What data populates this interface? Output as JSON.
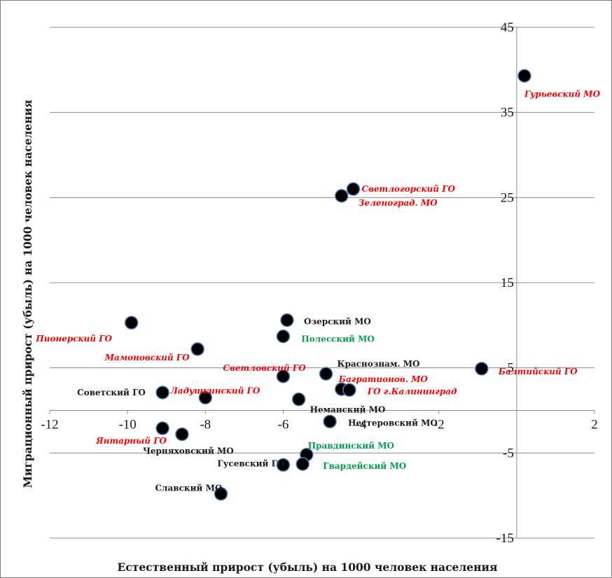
{
  "chart_data": {
    "type": "scatter",
    "title": "",
    "xlabel": "Естественный прирост (убыль) на 1000 человек населения",
    "ylabel": "Миграционный прирост (убыль) на 1000 человек населения",
    "xlim": [
      -12,
      2
    ],
    "ylim": [
      -15,
      45
    ],
    "x_ticks": [
      "-12",
      "-10",
      "-8",
      "-6",
      "-4",
      "-2",
      "2"
    ],
    "y_ticks": [
      "45",
      "35",
      "25",
      "15",
      "5",
      "-5",
      "-15"
    ],
    "grid": "horizontal",
    "marker_color": "#000000",
    "marker_edge_color": "#4a7ebb",
    "label_colors": {
      "red": "#ff0000",
      "green": "#00a050",
      "black": "#1a1a1a"
    },
    "points": [
      {
        "label": "Гурьевский МО",
        "x": 0.2,
        "y": 39.3,
        "color": "red"
      },
      {
        "label": "Светлогорский ГО",
        "x": -4.2,
        "y": 26.0,
        "color": "red"
      },
      {
        "label": "Зеленоград. МО",
        "x": -4.5,
        "y": 25.2,
        "color": "red"
      },
      {
        "label": "Озерский МО",
        "x": -5.9,
        "y": 10.6,
        "color": "black"
      },
      {
        "label": "Пионерский ГО",
        "x": -9.9,
        "y": 10.3,
        "color": "red"
      },
      {
        "label": "Полесский МО",
        "x": -6.0,
        "y": 8.7,
        "color": "green"
      },
      {
        "label": "Мамоновский ГО",
        "x": -8.2,
        "y": 7.2,
        "color": "red"
      },
      {
        "label": "Балтийский ГО",
        "x": -0.9,
        "y": 4.9,
        "color": "red"
      },
      {
        "label": "Краснознам. МО",
        "x": -4.9,
        "y": 4.3,
        "color": "black"
      },
      {
        "label": "Светловский ГО",
        "x": -6.0,
        "y": 4.0,
        "color": "red"
      },
      {
        "label": "Багратионов. МО",
        "x": -4.5,
        "y": 2.5,
        "color": "red"
      },
      {
        "label": "ГО г.Калининград",
        "x": -4.3,
        "y": 2.4,
        "color": "red"
      },
      {
        "label": "Советский ГО",
        "x": -9.1,
        "y": 2.1,
        "color": "black"
      },
      {
        "label": "Ладушкинский ГО",
        "x": -8.0,
        "y": 1.5,
        "color": "red"
      },
      {
        "label": "Неманский МО",
        "x": -5.6,
        "y": 1.3,
        "color": "black"
      },
      {
        "label": "Нестеровский МО",
        "x": -4.8,
        "y": -1.3,
        "color": "black"
      },
      {
        "label": "Янтарный ГО",
        "x": -9.1,
        "y": -2.1,
        "color": "red"
      },
      {
        "label": "Черняховский МО",
        "x": -8.6,
        "y": -2.8,
        "color": "black"
      },
      {
        "label": "Правдинский МО",
        "x": -5.4,
        "y": -5.2,
        "color": "green"
      },
      {
        "label": "Гусевский ГО",
        "x": -6.0,
        "y": -6.4,
        "color": "black"
      },
      {
        "label": "Гвардейский МО",
        "x": -5.5,
        "y": -6.3,
        "color": "green"
      },
      {
        "label": "Славский МО",
        "x": -7.6,
        "y": -9.8,
        "color": "black"
      }
    ]
  }
}
